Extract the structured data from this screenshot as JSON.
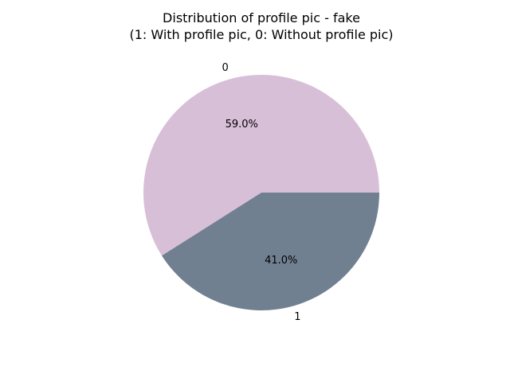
{
  "chart_data": {
    "type": "pie",
    "title": "Distribution of profile pic - fake",
    "subtitle": "(1: With profile pic, 0: Without profile pic)",
    "slices": [
      {
        "label": "0",
        "value": 59.0,
        "pct_label": "59.0%",
        "color": "#d8bfd8"
      },
      {
        "label": "1",
        "value": 41.0,
        "pct_label": "41.0%",
        "color": "#708090"
      }
    ]
  }
}
